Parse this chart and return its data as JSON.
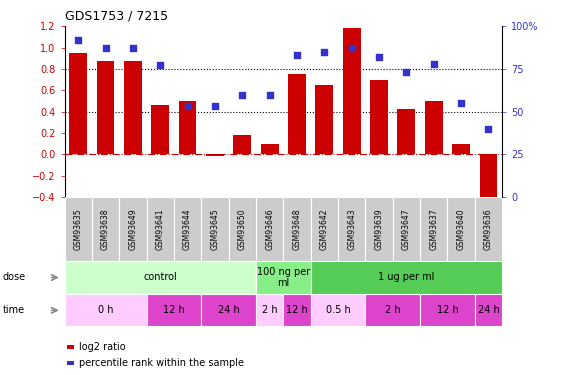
{
  "title": "GDS1753 / 7215",
  "samples": [
    "GSM93635",
    "GSM93638",
    "GSM93649",
    "GSM93641",
    "GSM93644",
    "GSM93645",
    "GSM93650",
    "GSM93646",
    "GSM93648",
    "GSM93642",
    "GSM93643",
    "GSM93639",
    "GSM93647",
    "GSM93637",
    "GSM93640",
    "GSM93636"
  ],
  "log2_ratio": [
    0.95,
    0.87,
    0.87,
    0.46,
    0.5,
    -0.02,
    0.18,
    0.1,
    0.75,
    0.65,
    1.18,
    0.7,
    0.42,
    0.5,
    0.1,
    -0.42
  ],
  "pct_rank": [
    92,
    87,
    87,
    77,
    53,
    53,
    60,
    60,
    83,
    85,
    87,
    82,
    73,
    78,
    55,
    40
  ],
  "ylim": [
    -0.4,
    1.2
  ],
  "y2lim": [
    0,
    100
  ],
  "bar_color": "#cc0000",
  "dot_color": "#3333cc",
  "dotline1": 0.8,
  "dotline2": 0.4,
  "dose_groups": [
    {
      "label": "control",
      "start": 0,
      "end": 7,
      "color": "#ccffcc"
    },
    {
      "label": "100 ng per\nml",
      "start": 7,
      "end": 9,
      "color": "#88ee88"
    },
    {
      "label": "1 ug per ml",
      "start": 9,
      "end": 16,
      "color": "#55cc55"
    }
  ],
  "time_groups": [
    {
      "label": "0 h",
      "start": 0,
      "end": 3,
      "color": "#ffccff"
    },
    {
      "label": "12 h",
      "start": 3,
      "end": 5,
      "color": "#dd44cc"
    },
    {
      "label": "24 h",
      "start": 5,
      "end": 7,
      "color": "#dd44cc"
    },
    {
      "label": "2 h",
      "start": 7,
      "end": 8,
      "color": "#ffccff"
    },
    {
      "label": "12 h",
      "start": 8,
      "end": 9,
      "color": "#dd44cc"
    },
    {
      "label": "0.5 h",
      "start": 9,
      "end": 11,
      "color": "#ffccff"
    },
    {
      "label": "2 h",
      "start": 11,
      "end": 13,
      "color": "#dd44cc"
    },
    {
      "label": "12 h",
      "start": 13,
      "end": 15,
      "color": "#dd44cc"
    },
    {
      "label": "24 h",
      "start": 15,
      "end": 16,
      "color": "#dd44cc"
    }
  ],
  "legend_red": "log2 ratio",
  "legend_blue": "percentile rank within the sample",
  "dose_label": "dose",
  "time_label": "time",
  "bg_color": "#ffffff",
  "sample_box_color": "#cccccc",
  "arrow_color": "#888888"
}
